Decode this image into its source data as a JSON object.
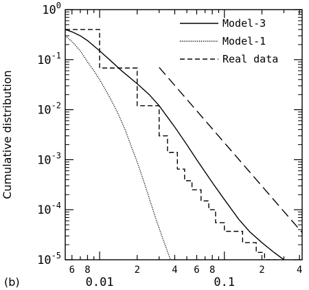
{
  "panel_label": "(b)",
  "chart_data": {
    "type": "line",
    "title": "",
    "xlabel": "",
    "ylabel": "Cumulative distribution",
    "xscale": "log",
    "yscale": "log",
    "xlim": [
      0.0053,
      0.42
    ],
    "ylim": [
      1e-05,
      1
    ],
    "grid": false,
    "legend_position": "top-right",
    "x_major_ticks": [
      {
        "value": 0.01,
        "label": "0.01"
      },
      {
        "value": 0.1,
        "label": "0.1"
      }
    ],
    "x_minor_ticks": [
      {
        "value": 0.006,
        "label": "6"
      },
      {
        "value": 0.008,
        "label": "8"
      },
      {
        "value": 0.02,
        "label": "2"
      },
      {
        "value": 0.04,
        "label": "4"
      },
      {
        "value": 0.06,
        "label": "6"
      },
      {
        "value": 0.08,
        "label": "8"
      },
      {
        "value": 0.2,
        "label": "2"
      },
      {
        "value": 0.4,
        "label": "4"
      }
    ],
    "y_ticks": [
      {
        "value": 1,
        "base": "10",
        "exp": "0"
      },
      {
        "value": 0.1,
        "base": "10",
        "exp": "-1"
      },
      {
        "value": 0.01,
        "base": "10",
        "exp": "-2"
      },
      {
        "value": 0.001,
        "base": "10",
        "exp": "-3"
      },
      {
        "value": 0.0001,
        "base": "10",
        "exp": "-4"
      },
      {
        "value": 1e-05,
        "base": "10",
        "exp": "-5"
      }
    ],
    "series": [
      {
        "name": "Model-3",
        "style": "solid",
        "color": "#000000",
        "points": [
          [
            0.0053,
            0.4
          ],
          [
            0.006,
            0.36
          ],
          [
            0.007,
            0.3
          ],
          [
            0.008,
            0.24
          ],
          [
            0.01,
            0.15
          ],
          [
            0.012,
            0.1
          ],
          [
            0.015,
            0.06
          ],
          [
            0.02,
            0.033
          ],
          [
            0.025,
            0.02
          ],
          [
            0.03,
            0.012
          ],
          [
            0.04,
            0.0045
          ],
          [
            0.05,
            0.002
          ],
          [
            0.06,
            0.001
          ],
          [
            0.08,
            0.00035
          ],
          [
            0.1,
            0.00016
          ],
          [
            0.13,
            6.5e-05
          ],
          [
            0.16,
            3.6e-05
          ],
          [
            0.2,
            2.2e-05
          ],
          [
            0.25,
            1.4e-05
          ],
          [
            0.3,
            1e-05
          ]
        ]
      },
      {
        "name": "Model-1",
        "style": "dotted",
        "color": "#000000",
        "points": [
          [
            0.0053,
            0.3
          ],
          [
            0.006,
            0.23
          ],
          [
            0.007,
            0.15
          ],
          [
            0.008,
            0.09
          ],
          [
            0.009,
            0.06
          ],
          [
            0.01,
            0.04
          ],
          [
            0.012,
            0.018
          ],
          [
            0.014,
            0.0085
          ],
          [
            0.016,
            0.004
          ],
          [
            0.018,
            0.0018
          ],
          [
            0.02,
            0.0009
          ],
          [
            0.022,
            0.00045
          ],
          [
            0.025,
            0.00017
          ],
          [
            0.028,
            7e-05
          ],
          [
            0.032,
            2.7e-05
          ],
          [
            0.037,
            1e-05
          ]
        ]
      },
      {
        "name": "Real data",
        "style": "dashed",
        "color": "#000000",
        "points": [
          [
            0.0053,
            0.4
          ],
          [
            0.01,
            0.4
          ],
          [
            0.01,
            0.068
          ],
          [
            0.02,
            0.068
          ],
          [
            0.02,
            0.012
          ],
          [
            0.03,
            0.012
          ],
          [
            0.03,
            0.003
          ],
          [
            0.035,
            0.003
          ],
          [
            0.035,
            0.0014
          ],
          [
            0.042,
            0.0014
          ],
          [
            0.042,
            0.00065
          ],
          [
            0.048,
            0.00065
          ],
          [
            0.048,
            0.00038
          ],
          [
            0.055,
            0.00038
          ],
          [
            0.055,
            0.00025
          ],
          [
            0.065,
            0.00025
          ],
          [
            0.065,
            0.00015
          ],
          [
            0.075,
            0.00015
          ],
          [
            0.075,
            0.0001
          ],
          [
            0.085,
            0.0001
          ],
          [
            0.085,
            5.5e-05
          ],
          [
            0.1,
            5.5e-05
          ],
          [
            0.1,
            3.7e-05
          ],
          [
            0.14,
            3.7e-05
          ],
          [
            0.14,
            2.2e-05
          ],
          [
            0.18,
            2.2e-05
          ],
          [
            0.18,
            1.4e-05
          ],
          [
            0.21,
            1.4e-05
          ],
          [
            0.21,
            1e-05
          ],
          [
            0.26,
            1e-05
          ]
        ]
      },
      {
        "name": "",
        "style": "longdash",
        "color": "#000000",
        "points": [
          [
            0.03,
            0.07
          ],
          [
            0.42,
            3.5e-05
          ]
        ]
      }
    ]
  }
}
